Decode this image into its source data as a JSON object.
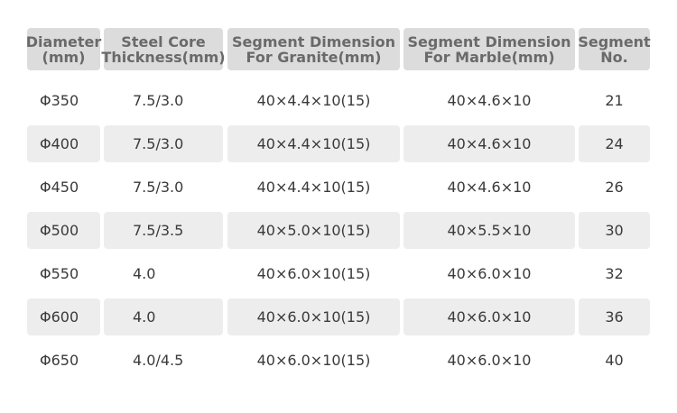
{
  "headers": [
    "Diameter\n(mm)",
    "Steel Core\nThickness(mm)",
    "Segment Dimension\nFor Granite(mm)",
    "Segment Dimension\nFor Marble(mm)",
    "Segment\nNo."
  ],
  "rows": [
    {
      "diameter": "Φ350",
      "core": "7.5/3.0",
      "granite": "40×4.4×10(15)",
      "marble": "40×4.6×10",
      "segments": "21"
    },
    {
      "diameter": "Φ400",
      "core": "7.5/3.0",
      "granite": "40×4.4×10(15)",
      "marble": "40×4.6×10",
      "segments": "24"
    },
    {
      "diameter": "Φ450",
      "core": "7.5/3.0",
      "granite": "40×4.4×10(15)",
      "marble": "40×4.6×10",
      "segments": "26"
    },
    {
      "diameter": "Φ500",
      "core": "7.5/3.5",
      "granite": "40×5.0×10(15)",
      "marble": "40×5.5×10",
      "segments": "30"
    },
    {
      "diameter": "Φ550",
      "core": "4.0",
      "granite": "40×6.0×10(15)",
      "marble": "40×6.0×10",
      "segments": "32"
    },
    {
      "diameter": "Φ600",
      "core": "4.0",
      "granite": "40×6.0×10(15)",
      "marble": "40×6.0×10",
      "segments": "36"
    },
    {
      "diameter": "Φ650",
      "core": "4.0/4.5",
      "granite": "40×6.0×10(15)",
      "marble": "40×6.0×10",
      "segments": "40"
    }
  ],
  "colors": {
    "header_bg": "#dcdcdc",
    "header_text": "#6a6a6a",
    "row_shade": "#ededed",
    "body_text": "#3a3a3a"
  }
}
